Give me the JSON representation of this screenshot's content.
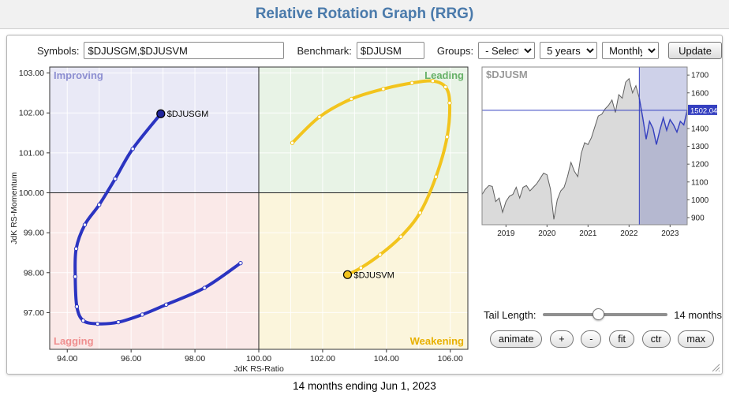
{
  "header": {
    "title": "Relative Rotation Graph (RRG)"
  },
  "toolbar": {
    "symbols_label": "Symbols:",
    "symbols_value": "$DJUSGM,$DJUSVM",
    "benchmark_label": "Benchmark:",
    "benchmark_value": "$DJUSM",
    "groups_label": "Groups:",
    "groups_select": "- Select -",
    "period_select": "5 years",
    "interval_select": "Monthly",
    "update_label": "Update"
  },
  "rrg": {
    "quadrants": {
      "improving": {
        "label": "Improving",
        "color": "#8d8fd1",
        "bg": "#e9e9f6"
      },
      "leading": {
        "label": "Leading",
        "color": "#67b168",
        "bg": "#e8f3e6"
      },
      "lagging": {
        "label": "Lagging",
        "color": "#ef8f8f",
        "bg": "#fae9e8"
      },
      "weakening": {
        "label": "Weakening",
        "color": "#e8b000",
        "bg": "#fbf5dc"
      }
    }
  },
  "controls": {
    "tail_label": "Tail Length:",
    "tail_value": "14 months",
    "buttons": [
      "animate",
      "+",
      "-",
      "fit",
      "ctr",
      "max"
    ]
  },
  "caption": "14 months ending Jun 1, 2023",
  "chart_data": [
    {
      "type": "scatter",
      "subtype": "rrg-rotation-tails",
      "xlabel": "JdK RS-Ratio",
      "ylabel": "JdK RS-Momentum",
      "xlim": [
        93.45,
        106.55
      ],
      "ylim": [
        96.08,
        103.15
      ],
      "x_ticks": [
        94,
        96,
        98,
        100,
        102,
        104,
        106
      ],
      "y_ticks": [
        97,
        98,
        99,
        100,
        101,
        102,
        103
      ],
      "tail_months": 14,
      "series": [
        {
          "name": "$DJUSGM",
          "color": "#2b34c1",
          "marker_fill": "#20249b",
          "points": [
            [
              99.43,
              98.24
            ],
            [
              98.3,
              97.62
            ],
            [
              97.1,
              97.2
            ],
            [
              96.35,
              96.95
            ],
            [
              95.6,
              96.76
            ],
            [
              94.95,
              96.72
            ],
            [
              94.5,
              96.8
            ],
            [
              94.3,
              97.15
            ],
            [
              94.25,
              97.9
            ],
            [
              94.28,
              98.6
            ],
            [
              94.55,
              99.2
            ],
            [
              95.0,
              99.7
            ],
            [
              95.5,
              100.35
            ],
            [
              96.05,
              101.1
            ],
            [
              96.93,
              101.98
            ]
          ]
        },
        {
          "name": "$DJUSVM",
          "color": "#f2c41d",
          "marker_fill": "#f2c41d",
          "points": [
            [
              101.05,
              101.25
            ],
            [
              101.9,
              101.9
            ],
            [
              102.9,
              102.35
            ],
            [
              103.9,
              102.6
            ],
            [
              104.8,
              102.75
            ],
            [
              105.45,
              102.8
            ],
            [
              105.85,
              102.65
            ],
            [
              105.98,
              102.25
            ],
            [
              105.9,
              101.4
            ],
            [
              105.55,
              100.4
            ],
            [
              105.05,
              99.5
            ],
            [
              104.45,
              98.9
            ],
            [
              103.8,
              98.45
            ],
            [
              103.2,
              98.12
            ],
            [
              102.78,
              97.95
            ]
          ]
        }
      ]
    },
    {
      "type": "area",
      "title": "$DJUSM",
      "x_start": 2018.417,
      "x_step_months": 1,
      "ylim": [
        860,
        1745
      ],
      "y_ticks": [
        900,
        1000,
        1100,
        1200,
        1300,
        1400,
        1600,
        1700
      ],
      "x_ticks": [
        2019,
        2020,
        2021,
        2022,
        2023
      ],
      "last_value": 1502.04,
      "last_value_label": "1502.04",
      "highlight_start_index": 46,
      "accent": "#3540c0",
      "values": [
        1030,
        1060,
        1080,
        1075,
        990,
        1010,
        930,
        990,
        1020,
        1030,
        1070,
        1010,
        1070,
        1080,
        1050,
        1070,
        1090,
        1120,
        1150,
        1140,
        1060,
        890,
        1000,
        1050,
        1070,
        1130,
        1210,
        1160,
        1130,
        1260,
        1320,
        1310,
        1350,
        1410,
        1470,
        1480,
        1510,
        1530,
        1560,
        1490,
        1590,
        1570,
        1660,
        1680,
        1600,
        1640,
        1570,
        1460,
        1340,
        1440,
        1400,
        1310,
        1390,
        1460,
        1390,
        1450,
        1420,
        1380,
        1440,
        1420,
        1502.04
      ]
    }
  ]
}
